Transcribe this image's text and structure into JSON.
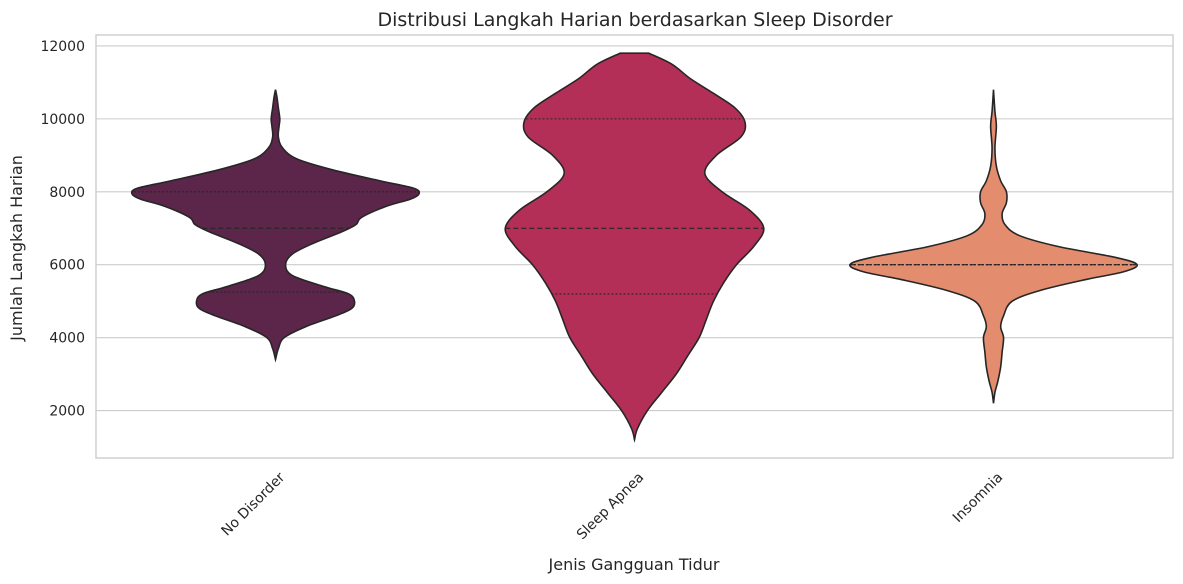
{
  "chart_data": {
    "type": "violin",
    "title": "Distribusi Langkah Harian berdasarkan Sleep Disorder",
    "xlabel": "Jenis Gangguan Tidur",
    "ylabel": "Jumlah Langkah Harian",
    "ylim": [
      700,
      12300
    ],
    "yticks": [
      2000,
      4000,
      6000,
      8000,
      10000,
      12000
    ],
    "grid": "horizontal",
    "categories": [
      "No Disorder",
      "Sleep Apnea",
      "Insomnia"
    ],
    "colors": [
      "#5c254a",
      "#b42f57",
      "#e38c6e"
    ],
    "series": [
      {
        "category": "No Disorder",
        "min": 3400,
        "max": 10800,
        "quartiles": [
          5250,
          7000,
          8000
        ],
        "profile": [
          [
            3400,
            0.0
          ],
          [
            3700,
            0.02
          ],
          [
            4000,
            0.06
          ],
          [
            4300,
            0.21
          ],
          [
            4600,
            0.42
          ],
          [
            4800,
            0.53
          ],
          [
            5000,
            0.55
          ],
          [
            5200,
            0.51
          ],
          [
            5400,
            0.34
          ],
          [
            5700,
            0.12
          ],
          [
            6000,
            0.07
          ],
          [
            6300,
            0.12
          ],
          [
            6600,
            0.27
          ],
          [
            6900,
            0.46
          ],
          [
            7100,
            0.56
          ],
          [
            7300,
            0.6
          ],
          [
            7600,
            0.77
          ],
          [
            7800,
            0.94
          ],
          [
            7950,
            1.0
          ],
          [
            8100,
            0.96
          ],
          [
            8300,
            0.73
          ],
          [
            8600,
            0.4
          ],
          [
            8900,
            0.15
          ],
          [
            9200,
            0.05
          ],
          [
            9500,
            0.02
          ],
          [
            9800,
            0.025
          ],
          [
            10000,
            0.03
          ],
          [
            10300,
            0.02
          ],
          [
            10600,
            0.01
          ],
          [
            10800,
            0.0
          ]
        ]
      },
      {
        "category": "Sleep Apnea",
        "min": 1200,
        "max": 11800,
        "quartiles": [
          5200,
          7000,
          10000
        ],
        "profile": [
          [
            1200,
            0.0
          ],
          [
            1500,
            0.02
          ],
          [
            2000,
            0.09
          ],
          [
            2500,
            0.19
          ],
          [
            3000,
            0.29
          ],
          [
            3500,
            0.37
          ],
          [
            4000,
            0.45
          ],
          [
            4500,
            0.5
          ],
          [
            5000,
            0.55
          ],
          [
            5500,
            0.62
          ],
          [
            6000,
            0.71
          ],
          [
            6500,
            0.83
          ],
          [
            7000,
            0.9
          ],
          [
            7500,
            0.8
          ],
          [
            8000,
            0.61
          ],
          [
            8500,
            0.49
          ],
          [
            9000,
            0.57
          ],
          [
            9500,
            0.74
          ],
          [
            9900,
            0.77
          ],
          [
            10300,
            0.7
          ],
          [
            10700,
            0.55
          ],
          [
            11100,
            0.39
          ],
          [
            11500,
            0.26
          ],
          [
            11800,
            0.1
          ]
        ]
      },
      {
        "category": "Insomnia",
        "min": 2200,
        "max": 10800,
        "quartiles": [
          6000,
          6000,
          6000
        ],
        "profile": [
          [
            2200,
            0.0
          ],
          [
            2500,
            0.01
          ],
          [
            2800,
            0.03
          ],
          [
            3200,
            0.05
          ],
          [
            3600,
            0.06
          ],
          [
            4000,
            0.07
          ],
          [
            4300,
            0.05
          ],
          [
            4600,
            0.07
          ],
          [
            5000,
            0.13
          ],
          [
            5300,
            0.33
          ],
          [
            5600,
            0.65
          ],
          [
            5800,
            0.9
          ],
          [
            6000,
            1.0
          ],
          [
            6200,
            0.85
          ],
          [
            6500,
            0.45
          ],
          [
            6800,
            0.18
          ],
          [
            7100,
            0.08
          ],
          [
            7400,
            0.06
          ],
          [
            7700,
            0.09
          ],
          [
            8000,
            0.09
          ],
          [
            8300,
            0.05
          ],
          [
            8700,
            0.02
          ],
          [
            9200,
            0.01
          ],
          [
            9800,
            0.02
          ],
          [
            10200,
            0.01
          ],
          [
            10800,
            0.0
          ]
        ]
      }
    ]
  }
}
